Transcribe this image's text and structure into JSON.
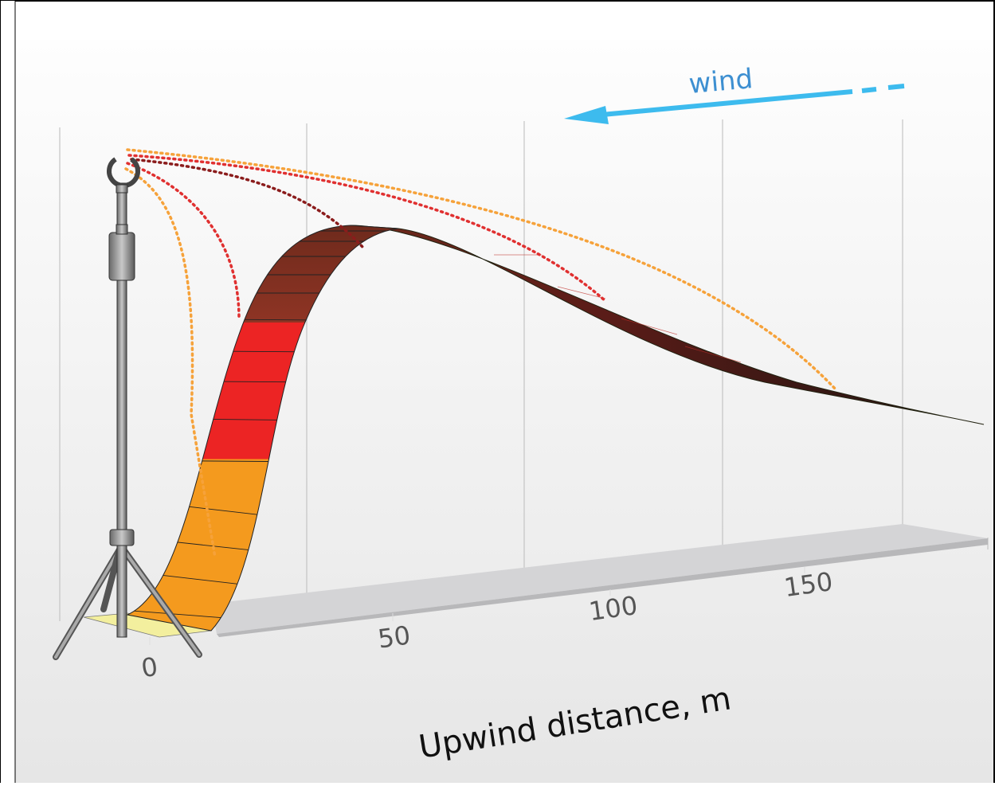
{
  "wind_label": "wind",
  "axis": {
    "label": "Upwind distance, m",
    "ticks": [
      "0",
      "50",
      "100",
      "150"
    ]
  }
}
